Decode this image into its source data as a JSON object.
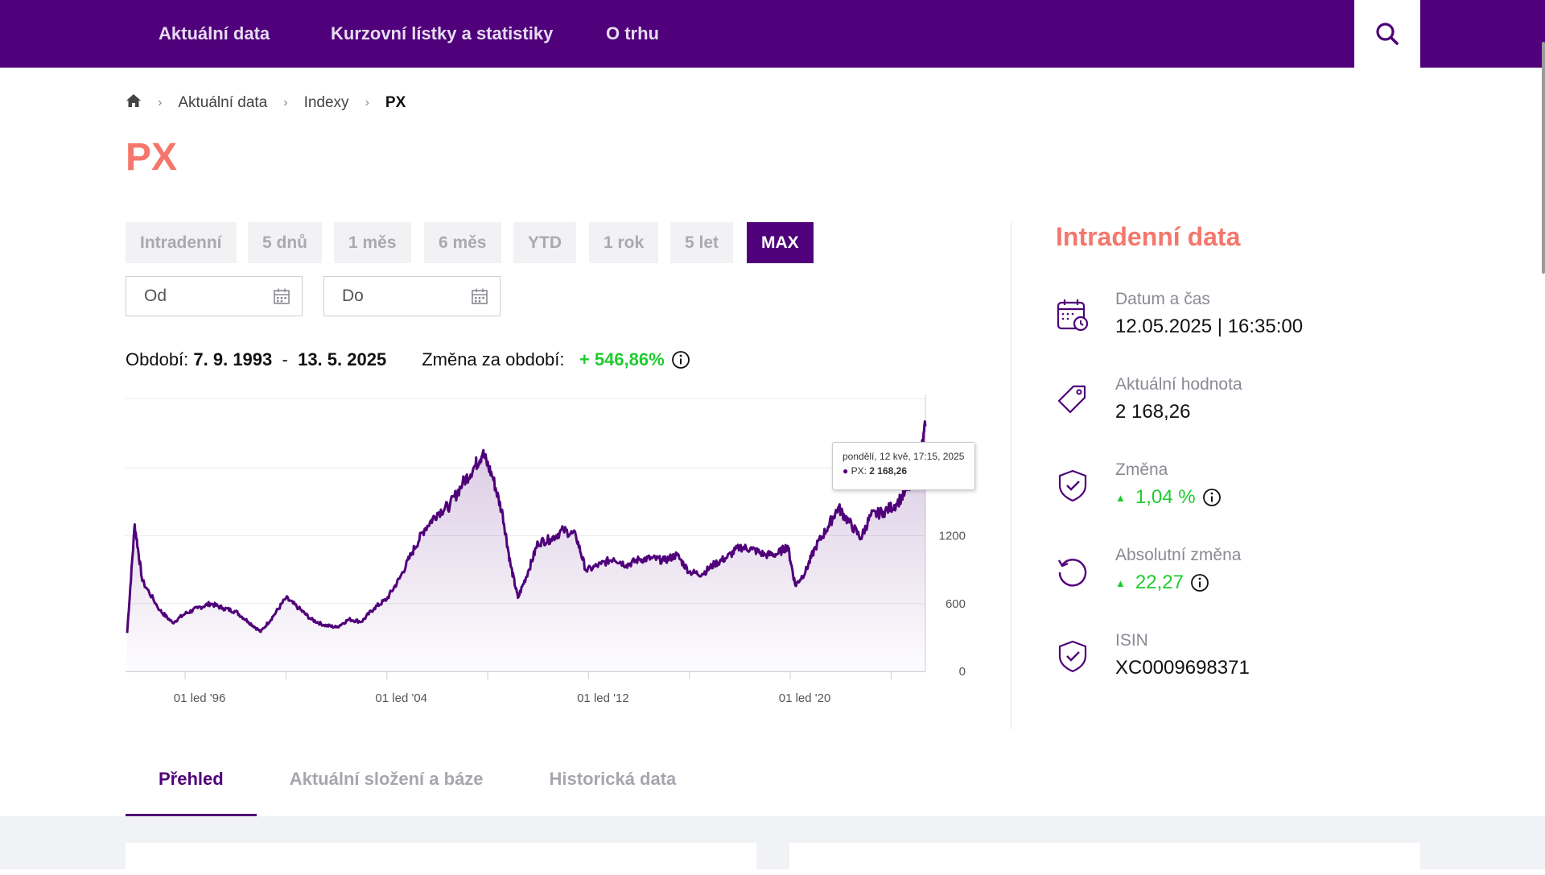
{
  "nav": {
    "items": [
      "Aktuální data",
      "Kurzovní lístky a statistiky",
      "O trhu"
    ],
    "search_icon": "search-icon"
  },
  "breadcrumb": {
    "home_icon": "home-icon",
    "items": [
      "Aktuální data",
      "Indexy"
    ],
    "current": "PX"
  },
  "page_title": "PX",
  "ranges": [
    "Intradenní",
    "5 dnů",
    "1 měs",
    "6 měs",
    "YTD",
    "1 rok",
    "5 let",
    "MAX"
  ],
  "active_range": "MAX",
  "date_inputs": {
    "from_placeholder": "Od",
    "to_placeholder": "Do",
    "icon": "calendar-icon"
  },
  "period": {
    "label": "Období:",
    "from": "7. 9. 1993",
    "dash": "-",
    "to": "13. 5. 2025",
    "change_label": "Změna za období:",
    "change_value": "+ 546,86%"
  },
  "tooltip": {
    "date": "pondělí, 12 kvě, 17:15, 2025",
    "series": "PX:",
    "value": "2 168,26"
  },
  "chart_data": {
    "type": "area",
    "x_tick_labels": [
      "01 led '96",
      "01 led '04",
      "01 led '12",
      "01 led '20"
    ],
    "y_tick_labels": [
      "0",
      "600",
      "1200"
    ],
    "ylim": [
      0,
      2450
    ],
    "series": [
      {
        "name": "PX",
        "points": [
          [
            1993.7,
            340
          ],
          [
            1994.0,
            1300
          ],
          [
            1994.3,
            800
          ],
          [
            1995.0,
            540
          ],
          [
            1995.5,
            430
          ],
          [
            1996.0,
            510
          ],
          [
            1996.5,
            560
          ],
          [
            1997.0,
            600
          ],
          [
            1997.5,
            560
          ],
          [
            1998.0,
            530
          ],
          [
            1998.5,
            440
          ],
          [
            1999.0,
            350
          ],
          [
            1999.5,
            490
          ],
          [
            2000.0,
            650
          ],
          [
            2000.5,
            560
          ],
          [
            2001.0,
            460
          ],
          [
            2001.5,
            410
          ],
          [
            2002.0,
            390
          ],
          [
            2002.5,
            460
          ],
          [
            2003.0,
            440
          ],
          [
            2003.5,
            560
          ],
          [
            2004.0,
            640
          ],
          [
            2004.5,
            820
          ],
          [
            2005.0,
            1050
          ],
          [
            2005.5,
            1260
          ],
          [
            2006.0,
            1400
          ],
          [
            2006.5,
            1470
          ],
          [
            2007.0,
            1660
          ],
          [
            2007.5,
            1820
          ],
          [
            2007.8,
            1930
          ],
          [
            2008.2,
            1720
          ],
          [
            2008.6,
            1380
          ],
          [
            2008.9,
            950
          ],
          [
            2009.2,
            650
          ],
          [
            2009.6,
            880
          ],
          [
            2010.0,
            1140
          ],
          [
            2010.5,
            1170
          ],
          [
            2011.0,
            1250
          ],
          [
            2011.5,
            1200
          ],
          [
            2011.9,
            890
          ],
          [
            2012.5,
            950
          ],
          [
            2013.0,
            1000
          ],
          [
            2013.5,
            940
          ],
          [
            2014.0,
            990
          ],
          [
            2014.5,
            1000
          ],
          [
            2015.0,
            980
          ],
          [
            2015.5,
            1030
          ],
          [
            2016.0,
            880
          ],
          [
            2016.5,
            860
          ],
          [
            2017.0,
            950
          ],
          [
            2017.5,
            1010
          ],
          [
            2018.0,
            1100
          ],
          [
            2018.5,
            1080
          ],
          [
            2019.0,
            1030
          ],
          [
            2019.5,
            1040
          ],
          [
            2019.9,
            1110
          ],
          [
            2020.2,
            760
          ],
          [
            2020.6,
            880
          ],
          [
            2021.0,
            1100
          ],
          [
            2021.5,
            1280
          ],
          [
            2021.9,
            1450
          ],
          [
            2022.3,
            1330
          ],
          [
            2022.8,
            1180
          ],
          [
            2023.2,
            1380
          ],
          [
            2023.7,
            1410
          ],
          [
            2024.2,
            1480
          ],
          [
            2024.7,
            1620
          ],
          [
            2025.1,
            1810
          ],
          [
            2025.36,
            2168.26
          ]
        ]
      }
    ]
  },
  "side_panel": {
    "title": "Intradenní data",
    "items": [
      {
        "label": "Datum a čas",
        "value": "12.05.2025 | 16:35:00",
        "icon": "calendar-clock-icon"
      },
      {
        "label": "Aktuální hodnota",
        "value": "2 168,26",
        "icon": "tag-icon"
      },
      {
        "label": "Změna",
        "value": "1,04 %",
        "icon": "shield-check-icon"
      },
      {
        "label": "Absolutní změna",
        "value": "22,27",
        "icon": "refresh-icon"
      },
      {
        "label": "ISIN",
        "value": "XC0009698371",
        "icon": "shield-check-icon"
      }
    ]
  },
  "tabs": [
    "Přehled",
    "Aktuální složení a báze",
    "Historická data"
  ],
  "colors": {
    "brand": "#4f007a",
    "accent": "#f5766c",
    "positive": "#1ecc2e"
  }
}
